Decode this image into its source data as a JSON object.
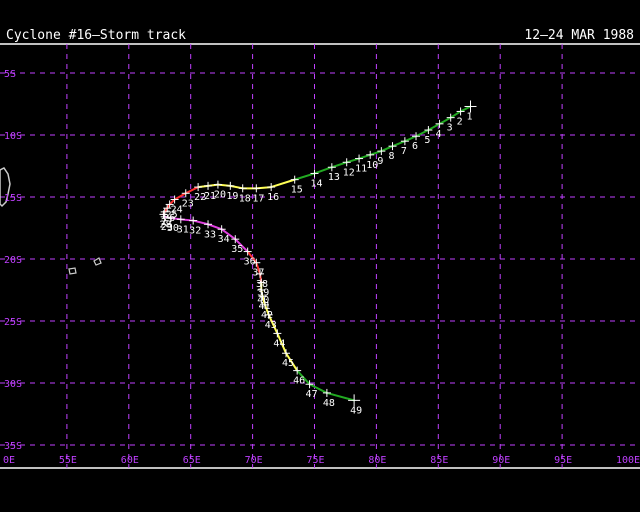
{
  "header": {
    "title": "Cyclone #16–Storm track",
    "dates": "12–24 MAR 1988"
  },
  "map": {
    "grid_color": "#c040ff",
    "lat_labels": [
      "5S",
      "10S",
      "15S",
      "20S",
      "25S",
      "30S",
      "35S"
    ],
    "lon_labels": [
      "0E",
      "55E",
      "60E",
      "65E",
      "70E",
      "75E",
      "80E",
      "85E",
      "90E",
      "95E",
      "100E"
    ],
    "track_colors": {
      "depression": "#22aa22",
      "storm": "#ffff55",
      "cyclone": "#ff3030",
      "dissipating": "#e040e0"
    },
    "track_points": [
      {
        "label": "1",
        "lon": 87.6,
        "lat": -7.7,
        "cls": "depression"
      },
      {
        "label": "2",
        "lon": 86.8,
        "lat": -8.1,
        "cls": "depression"
      },
      {
        "label": "3",
        "lon": 86.0,
        "lat": -8.6,
        "cls": "depression"
      },
      {
        "label": "4",
        "lon": 85.1,
        "lat": -9.1,
        "cls": "depression"
      },
      {
        "label": "5",
        "lon": 84.2,
        "lat": -9.6,
        "cls": "depression"
      },
      {
        "label": "6",
        "lon": 83.2,
        "lat": -10.1,
        "cls": "depression"
      },
      {
        "label": "7",
        "lon": 82.3,
        "lat": -10.5,
        "cls": "depression"
      },
      {
        "label": "8",
        "lon": 81.3,
        "lat": -10.9,
        "cls": "depression"
      },
      {
        "label": "9",
        "lon": 80.4,
        "lat": -11.3,
        "cls": "depression"
      },
      {
        "label": "10",
        "lon": 79.5,
        "lat": -11.6,
        "cls": "depression"
      },
      {
        "label": "11",
        "lon": 78.6,
        "lat": -11.9,
        "cls": "depression"
      },
      {
        "label": "12",
        "lon": 77.6,
        "lat": -12.2,
        "cls": "depression"
      },
      {
        "label": "13",
        "lon": 76.4,
        "lat": -12.6,
        "cls": "depression"
      },
      {
        "label": "14",
        "lon": 75.0,
        "lat": -13.1,
        "cls": "depression"
      },
      {
        "label": "15",
        "lon": 73.4,
        "lat": -13.6,
        "cls": "depression"
      },
      {
        "label": "16",
        "lon": 71.5,
        "lat": -14.2,
        "cls": "storm"
      },
      {
        "label": "17",
        "lon": 70.3,
        "lat": -14.3,
        "cls": "storm"
      },
      {
        "label": "18",
        "lon": 69.2,
        "lat": -14.3,
        "cls": "storm"
      },
      {
        "label": "19",
        "lon": 68.2,
        "lat": -14.1,
        "cls": "storm"
      },
      {
        "label": "20",
        "lon": 67.2,
        "lat": -14.0,
        "cls": "storm"
      },
      {
        "label": "21",
        "lon": 66.4,
        "lat": -14.1,
        "cls": "storm"
      },
      {
        "label": "22",
        "lon": 65.6,
        "lat": -14.2,
        "cls": "storm"
      },
      {
        "label": "23",
        "lon": 64.6,
        "lat": -14.7,
        "cls": "cyclone"
      },
      {
        "label": "24",
        "lon": 63.7,
        "lat": -15.2,
        "cls": "cyclone"
      },
      {
        "label": "25",
        "lon": 63.3,
        "lat": -15.6,
        "cls": "cyclone"
      },
      {
        "label": "26",
        "lon": 63.1,
        "lat": -15.9,
        "cls": "cyclone"
      },
      {
        "label": "27",
        "lon": 62.9,
        "lat": -16.2,
        "cls": "cyclone"
      },
      {
        "label": "28",
        "lon": 62.8,
        "lat": -16.4,
        "cls": "cyclone"
      },
      {
        "label": "29",
        "lon": 62.9,
        "lat": -16.6,
        "cls": "dissipating"
      },
      {
        "label": "30",
        "lon": 63.4,
        "lat": -16.7,
        "cls": "dissipating"
      },
      {
        "label": "31",
        "lon": 64.2,
        "lat": -16.8,
        "cls": "dissipating"
      },
      {
        "label": "32",
        "lon": 65.2,
        "lat": -16.9,
        "cls": "dissipating"
      },
      {
        "label": "33",
        "lon": 66.4,
        "lat": -17.2,
        "cls": "dissipating"
      },
      {
        "label": "34",
        "lon": 67.5,
        "lat": -17.6,
        "cls": "dissipating"
      },
      {
        "label": "35",
        "lon": 68.6,
        "lat": -18.4,
        "cls": "dissipating"
      },
      {
        "label": "36",
        "lon": 69.6,
        "lat": -19.4,
        "cls": "dissipating"
      },
      {
        "label": "37",
        "lon": 70.3,
        "lat": -20.3,
        "cls": "cyclone"
      },
      {
        "label": "38",
        "lon": 70.6,
        "lat": -21.2,
        "cls": "cyclone"
      },
      {
        "label": "39",
        "lon": 70.7,
        "lat": -21.9,
        "cls": "cyclone"
      },
      {
        "label": "40",
        "lon": 70.7,
        "lat": -22.5,
        "cls": "storm"
      },
      {
        "label": "41",
        "lon": 70.8,
        "lat": -23.0,
        "cls": "storm"
      },
      {
        "label": "42",
        "lon": 71.0,
        "lat": -23.7,
        "cls": "storm"
      },
      {
        "label": "43",
        "lon": 71.3,
        "lat": -24.5,
        "cls": "storm"
      },
      {
        "label": "44",
        "lon": 72.0,
        "lat": -26.0,
        "cls": "storm"
      },
      {
        "label": "45",
        "lon": 72.7,
        "lat": -27.6,
        "cls": "storm"
      },
      {
        "label": "46",
        "lon": 73.6,
        "lat": -29.0,
        "cls": "storm"
      },
      {
        "label": "47",
        "lon": 74.6,
        "lat": -30.1,
        "cls": "depression"
      },
      {
        "label": "48",
        "lon": 76.0,
        "lat": -30.8,
        "cls": "depression"
      },
      {
        "label": "49",
        "lon": 78.2,
        "lat": -31.4,
        "cls": "depression"
      }
    ]
  }
}
